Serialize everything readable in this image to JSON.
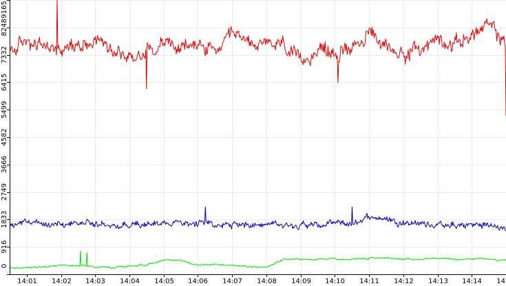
{
  "chart_data": {
    "type": "line",
    "title": "",
    "xlabel": "",
    "ylabel": "",
    "ylim": [
      0,
      9165
    ],
    "xlim": [
      "14:00:30",
      "14:15:00"
    ],
    "grid": "on",
    "legend": "none",
    "y_ticks": [
      "0",
      "916",
      "1833",
      "2749",
      "3666",
      "4582",
      "5499",
      "6415",
      "7332",
      "8248",
      "9165"
    ],
    "x_ticks": [
      "14:01",
      "14:02",
      "14:03",
      "14:04",
      "14:05",
      "14:06",
      "14:07",
      "14:08",
      "14:09",
      "14:10",
      "14:11",
      "14:12",
      "14:13",
      "14:14",
      "14"
    ],
    "x": [
      "14:00:30",
      "14:01:00",
      "14:01:30",
      "14:02:00",
      "14:02:30",
      "14:03:00",
      "14:03:30",
      "14:04:00",
      "14:04:30",
      "14:05:00",
      "14:05:30",
      "14:06:00",
      "14:06:30",
      "14:07:00",
      "14:07:30",
      "14:08:00",
      "14:08:30",
      "14:09:00",
      "14:09:30",
      "14:10:00",
      "14:10:30",
      "14:11:00",
      "14:11:30",
      "14:12:00",
      "14:12:30",
      "14:13:00",
      "14:13:30",
      "14:14:00",
      "14:14:30",
      "14:15:00"
    ],
    "series": [
      {
        "color": "#e00000",
        "values": [
          7400,
          7800,
          7600,
          7500,
          7700,
          7900,
          7600,
          7200,
          7500,
          7800,
          7500,
          7700,
          7400,
          7900,
          7800,
          7600,
          7700,
          7000,
          7600,
          7300,
          7700,
          8000,
          7600,
          7400,
          7500,
          7900,
          7700,
          8000,
          8300,
          7700
        ],
        "jitter": 500,
        "anomalies": [
          [
            "14:01:53",
            9165
          ],
          [
            "14:04:30",
            6200
          ],
          [
            "14:10:05",
            6400
          ],
          [
            "14:15:00",
            5300
          ]
        ]
      },
      {
        "color": "#0000b4",
        "values": [
          1650,
          1700,
          1660,
          1650,
          1700,
          1670,
          1600,
          1700,
          1650,
          1720,
          1750,
          1680,
          1650,
          1630,
          1700,
          1680,
          1650,
          1680,
          1620,
          1700,
          1650,
          1950,
          1850,
          1750,
          1700,
          1650,
          1600,
          1650,
          1650,
          1500
        ],
        "jitter": 230,
        "anomalies": [
          [
            "14:06:13",
            2250
          ],
          [
            "14:10:30",
            2250
          ]
        ]
      },
      {
        "color": "#00e000",
        "values": [
          230,
          220,
          250,
          300,
          300,
          240,
          220,
          260,
          320,
          470,
          480,
          300,
          330,
          310,
          250,
          230,
          500,
          500,
          510,
          510,
          510,
          540,
          550,
          510,
          500,
          540,
          500,
          510,
          500,
          470
        ],
        "jitter": 60,
        "anomalies": [
          [
            "14:02:34",
            780
          ],
          [
            "14:02:45",
            720
          ]
        ]
      }
    ]
  }
}
